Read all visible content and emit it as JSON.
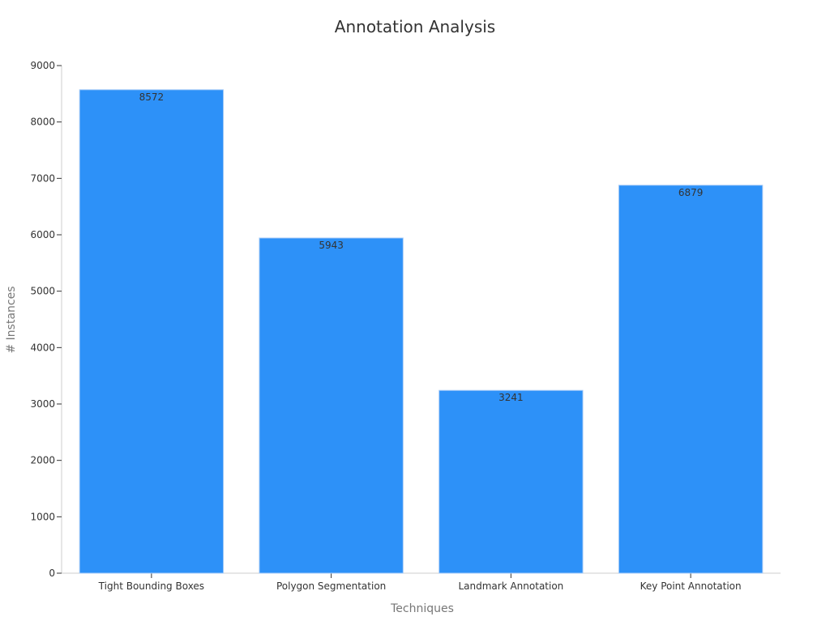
{
  "chart_data": {
    "type": "bar",
    "title": "Annotation Analysis",
    "xlabel": "Techniques",
    "ylabel": "# Instances",
    "categories": [
      "Tight Bounding Boxes",
      "Polygon Segmentation",
      "Landmark Annotation",
      "Key Point Annotation"
    ],
    "values": [
      8572,
      5943,
      3241,
      6879
    ],
    "data_labels": [
      "8572",
      "5943",
      "3241",
      "6879"
    ],
    "ylim": [
      0,
      9000
    ],
    "yticks": [
      0,
      1000,
      2000,
      3000,
      4000,
      5000,
      6000,
      7000,
      8000,
      9000
    ],
    "ytick_labels": [
      "0",
      "1000",
      "2000",
      "3000",
      "4000",
      "5000",
      "6000",
      "7000",
      "8000",
      "9000"
    ],
    "grid": false,
    "legend": "none",
    "bar_color": "#2d91f8"
  }
}
